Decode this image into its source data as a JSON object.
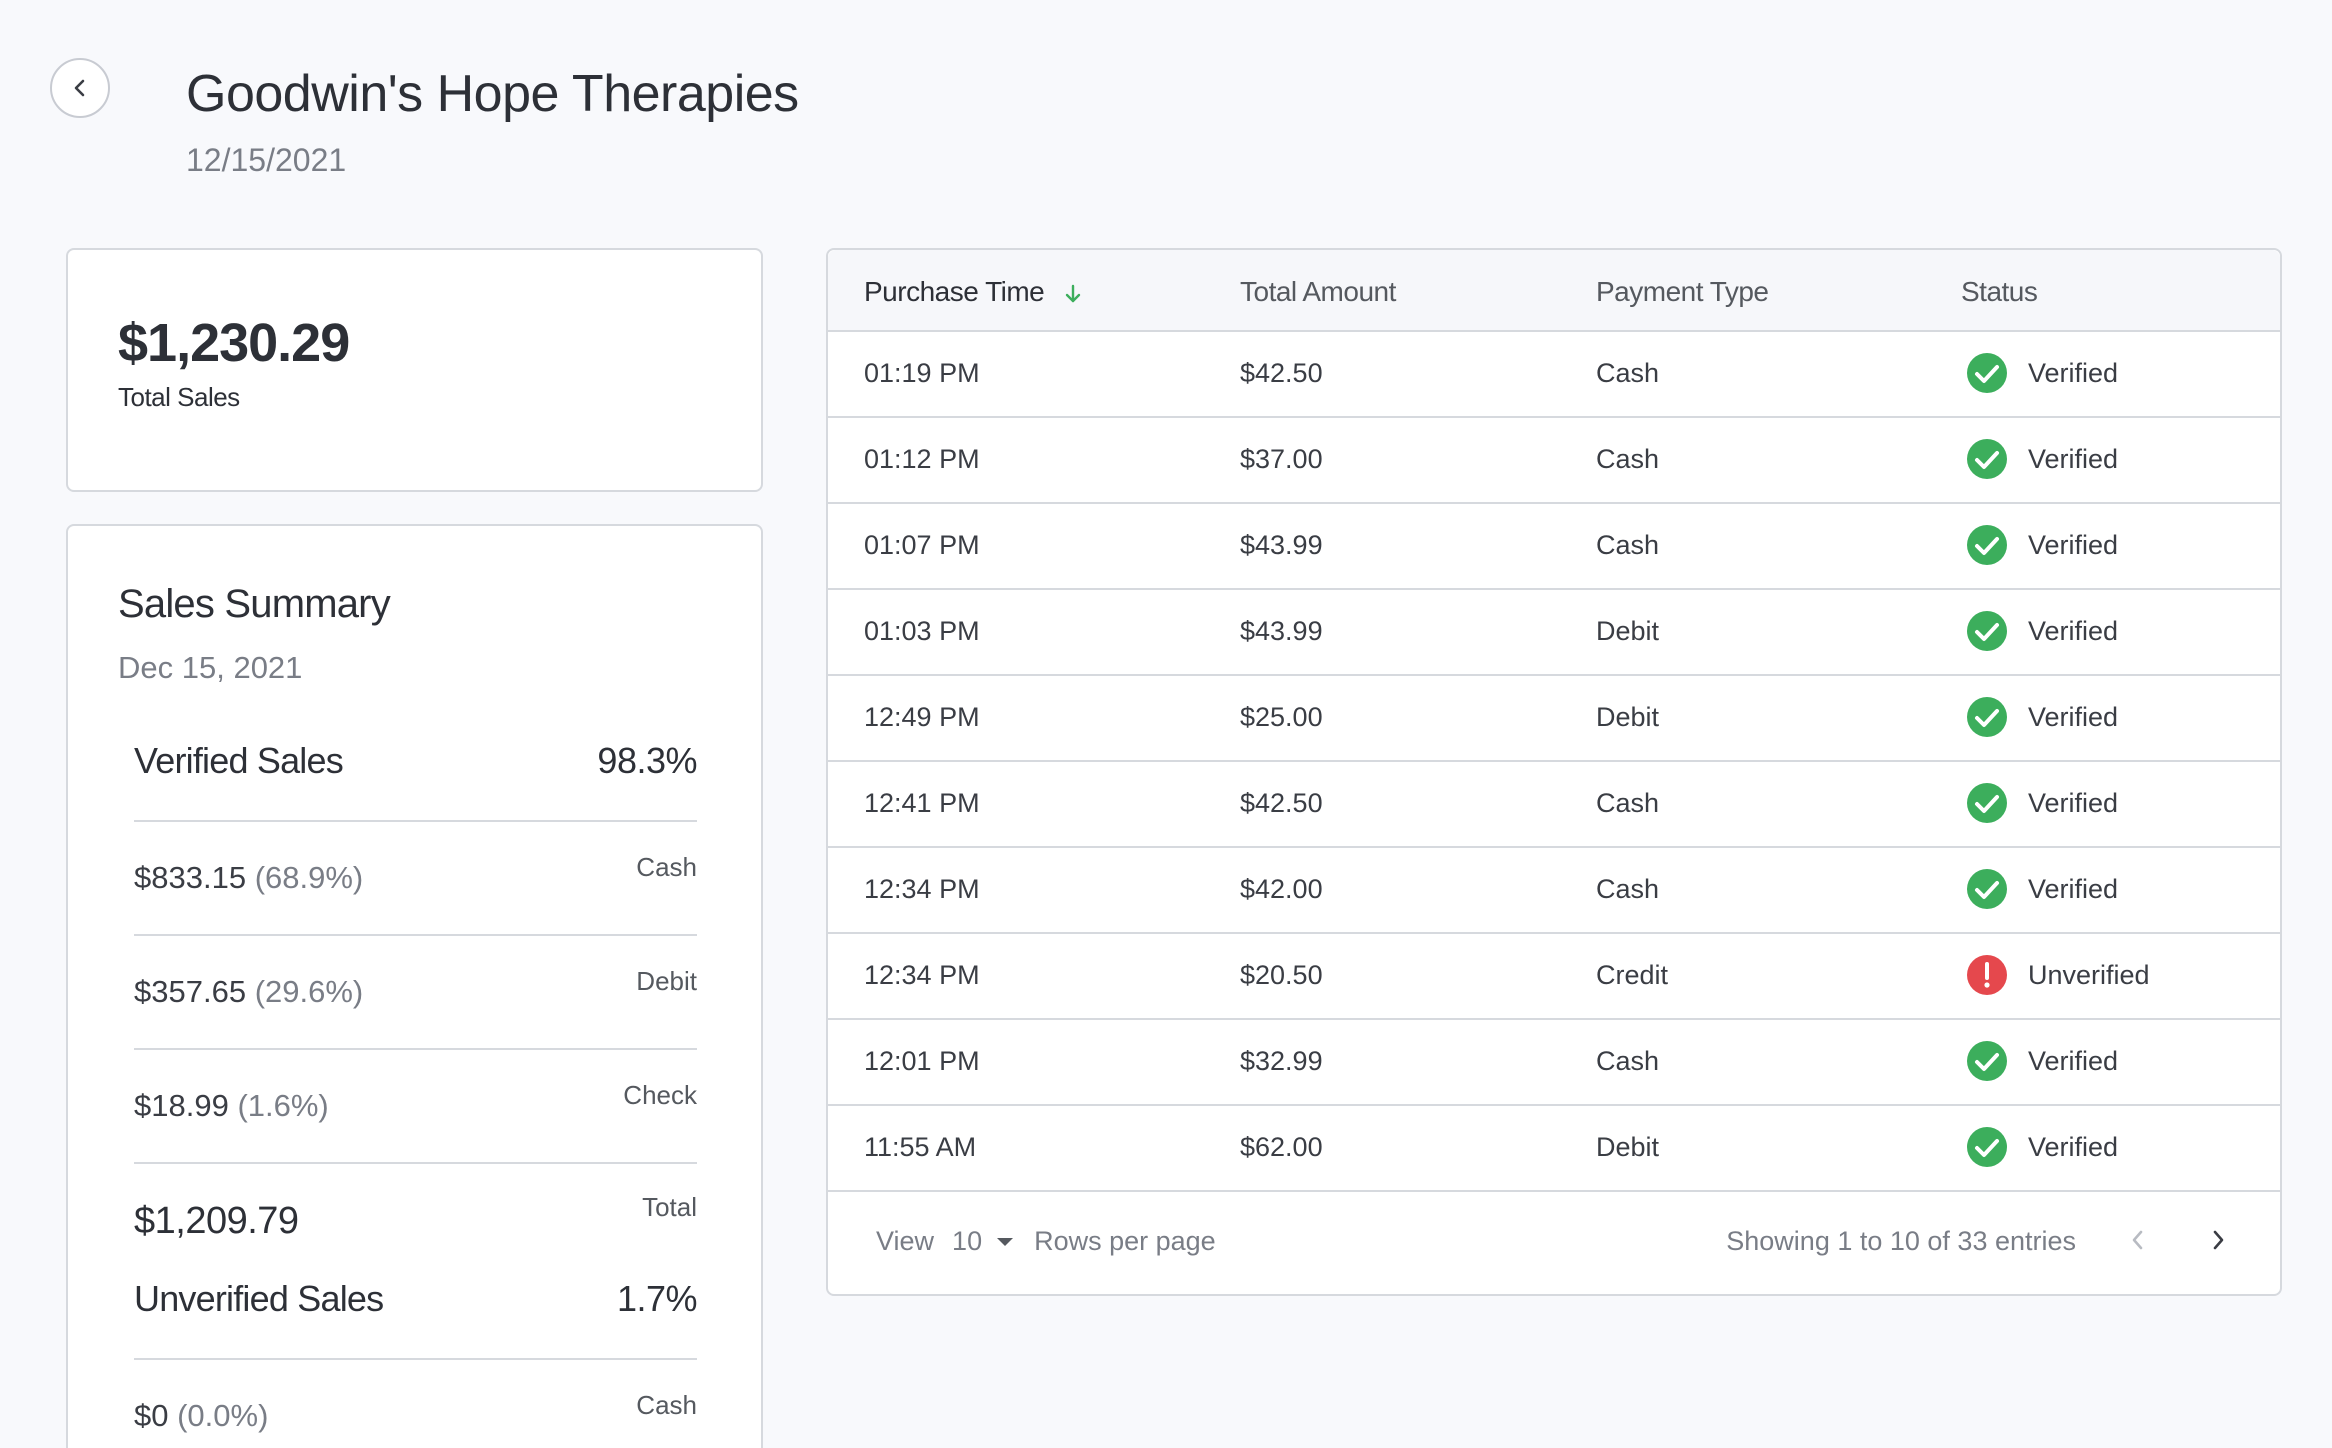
{
  "header": {
    "title": "Goodwin's Hope Therapies",
    "date": "12/15/2021"
  },
  "total_sales": {
    "value": "$1,230.29",
    "label": "Total Sales"
  },
  "summary": {
    "title": "Sales Summary",
    "date": "Dec 15, 2021",
    "verified": {
      "label": "Verified Sales",
      "percent": "98.3%",
      "rows": [
        {
          "amount": "$833.15",
          "percent": "(68.9%)",
          "type": "Cash"
        },
        {
          "amount": "$357.65",
          "percent": "(29.6%)",
          "type": "Debit"
        },
        {
          "amount": "$18.99",
          "percent": "(1.6%)",
          "type": "Check"
        }
      ],
      "total_amount": "$1,209.79",
      "total_label": "Total"
    },
    "unverified": {
      "label": "Unverified Sales",
      "percent": "1.7%",
      "rows": [
        {
          "amount": "$0",
          "percent": "(0.0%)",
          "type": "Cash"
        }
      ]
    }
  },
  "table": {
    "columns": [
      "Purchase Time",
      "Total Amount",
      "Payment Type",
      "Status"
    ],
    "rows": [
      {
        "time": "01:19 PM",
        "amount": "$42.50",
        "type": "Cash",
        "status": "Verified"
      },
      {
        "time": "01:12 PM",
        "amount": "$37.00",
        "type": "Cash",
        "status": "Verified"
      },
      {
        "time": "01:07 PM",
        "amount": "$43.99",
        "type": "Cash",
        "status": "Verified"
      },
      {
        "time": "01:03 PM",
        "amount": "$43.99",
        "type": "Debit",
        "status": "Verified"
      },
      {
        "time": "12:49 PM",
        "amount": "$25.00",
        "type": "Debit",
        "status": "Verified"
      },
      {
        "time": "12:41 PM",
        "amount": "$42.50",
        "type": "Cash",
        "status": "Verified"
      },
      {
        "time": "12:34 PM",
        "amount": "$42.00",
        "type": "Cash",
        "status": "Verified"
      },
      {
        "time": "12:34 PM",
        "amount": "$20.50",
        "type": "Credit",
        "status": "Unverified"
      },
      {
        "time": "12:01 PM",
        "amount": "$32.99",
        "type": "Cash",
        "status": "Verified"
      },
      {
        "time": "11:55 AM",
        "amount": "$62.00",
        "type": "Debit",
        "status": "Verified"
      }
    ],
    "footer": {
      "view_label": "View",
      "rows_per_page": "10",
      "rows_per_page_label": "Rows per page",
      "showing": "Showing 1 to 10 of 33 entries"
    }
  },
  "colors": {
    "verified": "#3cae5c",
    "unverified": "#e5484d",
    "sort_arrow": "#3cae5c"
  },
  "icons": {
    "back": "chevron-left-icon",
    "sort": "arrow-down-icon",
    "verified": "check-circle-icon",
    "unverified": "exclamation-circle-icon",
    "prev": "chevron-left-icon",
    "next": "chevron-right-icon",
    "dropdown": "caret-down-icon"
  }
}
